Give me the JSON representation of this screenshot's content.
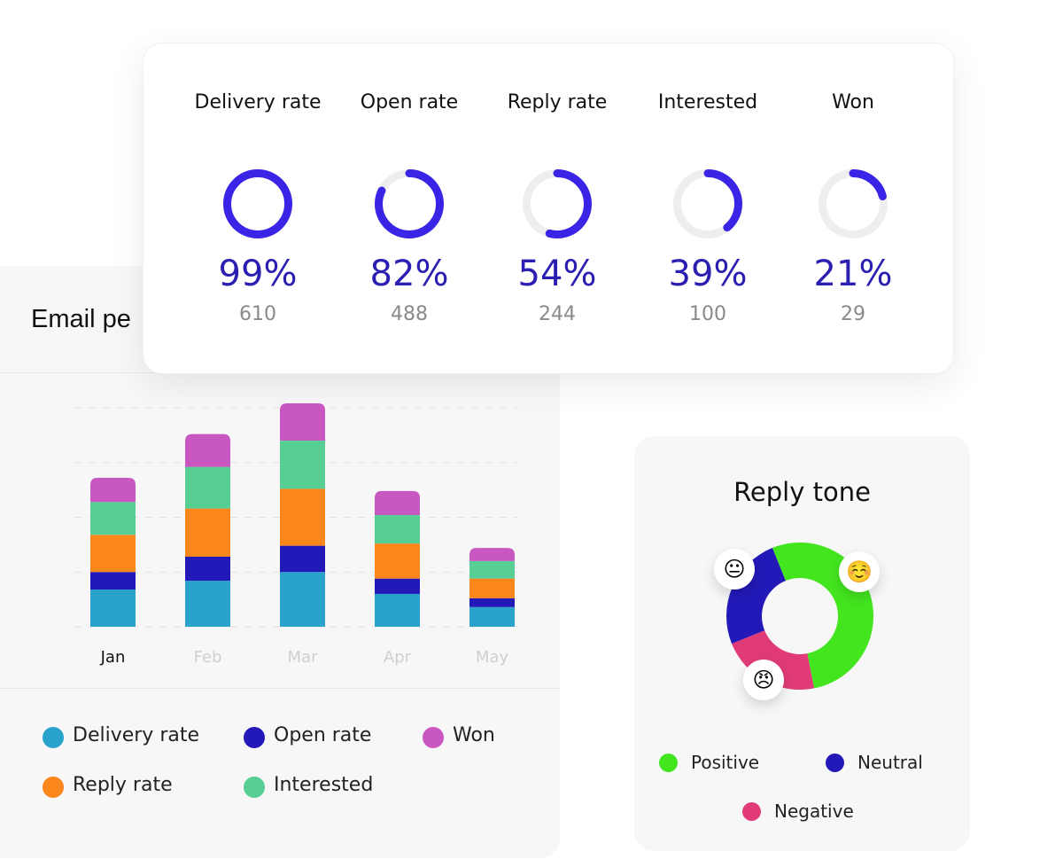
{
  "metrics": [
    {
      "label": "Delivery rate",
      "percent": "99%",
      "value": 99,
      "count": "610"
    },
    {
      "label": "Open rate",
      "percent": "82%",
      "value": 82,
      "count": "488"
    },
    {
      "label": "Reply rate",
      "percent": "54%",
      "value": 54,
      "count": "244"
    },
    {
      "label": "Interested",
      "percent": "39%",
      "value": 39,
      "count": "100"
    },
    {
      "label": "Won",
      "percent": "21%",
      "value": 21,
      "count": "29"
    }
  ],
  "colors": {
    "ring": "#3a24e6",
    "ring_track": "#eeeeee"
  },
  "email_performance": {
    "title": "Email pe"
  },
  "chart_data": [
    {
      "type": "bar",
      "stacked": true,
      "categories": [
        "Jan",
        "Feb",
        "Mar",
        "Apr",
        "May"
      ],
      "selected_category": "Jan",
      "series": [
        {
          "name": "Delivery rate",
          "color": "#29a3cc",
          "values": [
            17,
            21,
            25,
            15,
            9
          ]
        },
        {
          "name": "Open rate",
          "color": "#2319b8",
          "values": [
            8,
            11,
            12,
            7,
            4
          ]
        },
        {
          "name": "Reply rate",
          "color": "#fb861c",
          "values": [
            17,
            22,
            26,
            16,
            9
          ]
        },
        {
          "name": "Interested",
          "color": "#57cf94",
          "values": [
            15,
            19,
            22,
            13,
            8
          ]
        },
        {
          "name": "Won",
          "color": "#c957c1",
          "values": [
            11,
            15,
            17,
            11,
            6
          ]
        }
      ],
      "ylim": [
        0,
        100
      ],
      "grid": true,
      "legend_placement": "bottom",
      "legend_order": [
        "Delivery rate",
        "Open rate",
        "Won",
        "Reply rate",
        "Interested"
      ]
    },
    {
      "type": "pie",
      "donut": true,
      "title": "Reply tone",
      "slices": [
        {
          "name": "Positive",
          "value": 53,
          "color": "#43e51f",
          "emoji": "☺️"
        },
        {
          "name": "Negative",
          "value": 22,
          "color": "#e03b78",
          "emoji": "😠"
        },
        {
          "name": "Neutral",
          "value": 25,
          "color": "#2319b8",
          "emoji": "😐"
        }
      ],
      "legend_placement": "bottom"
    }
  ]
}
